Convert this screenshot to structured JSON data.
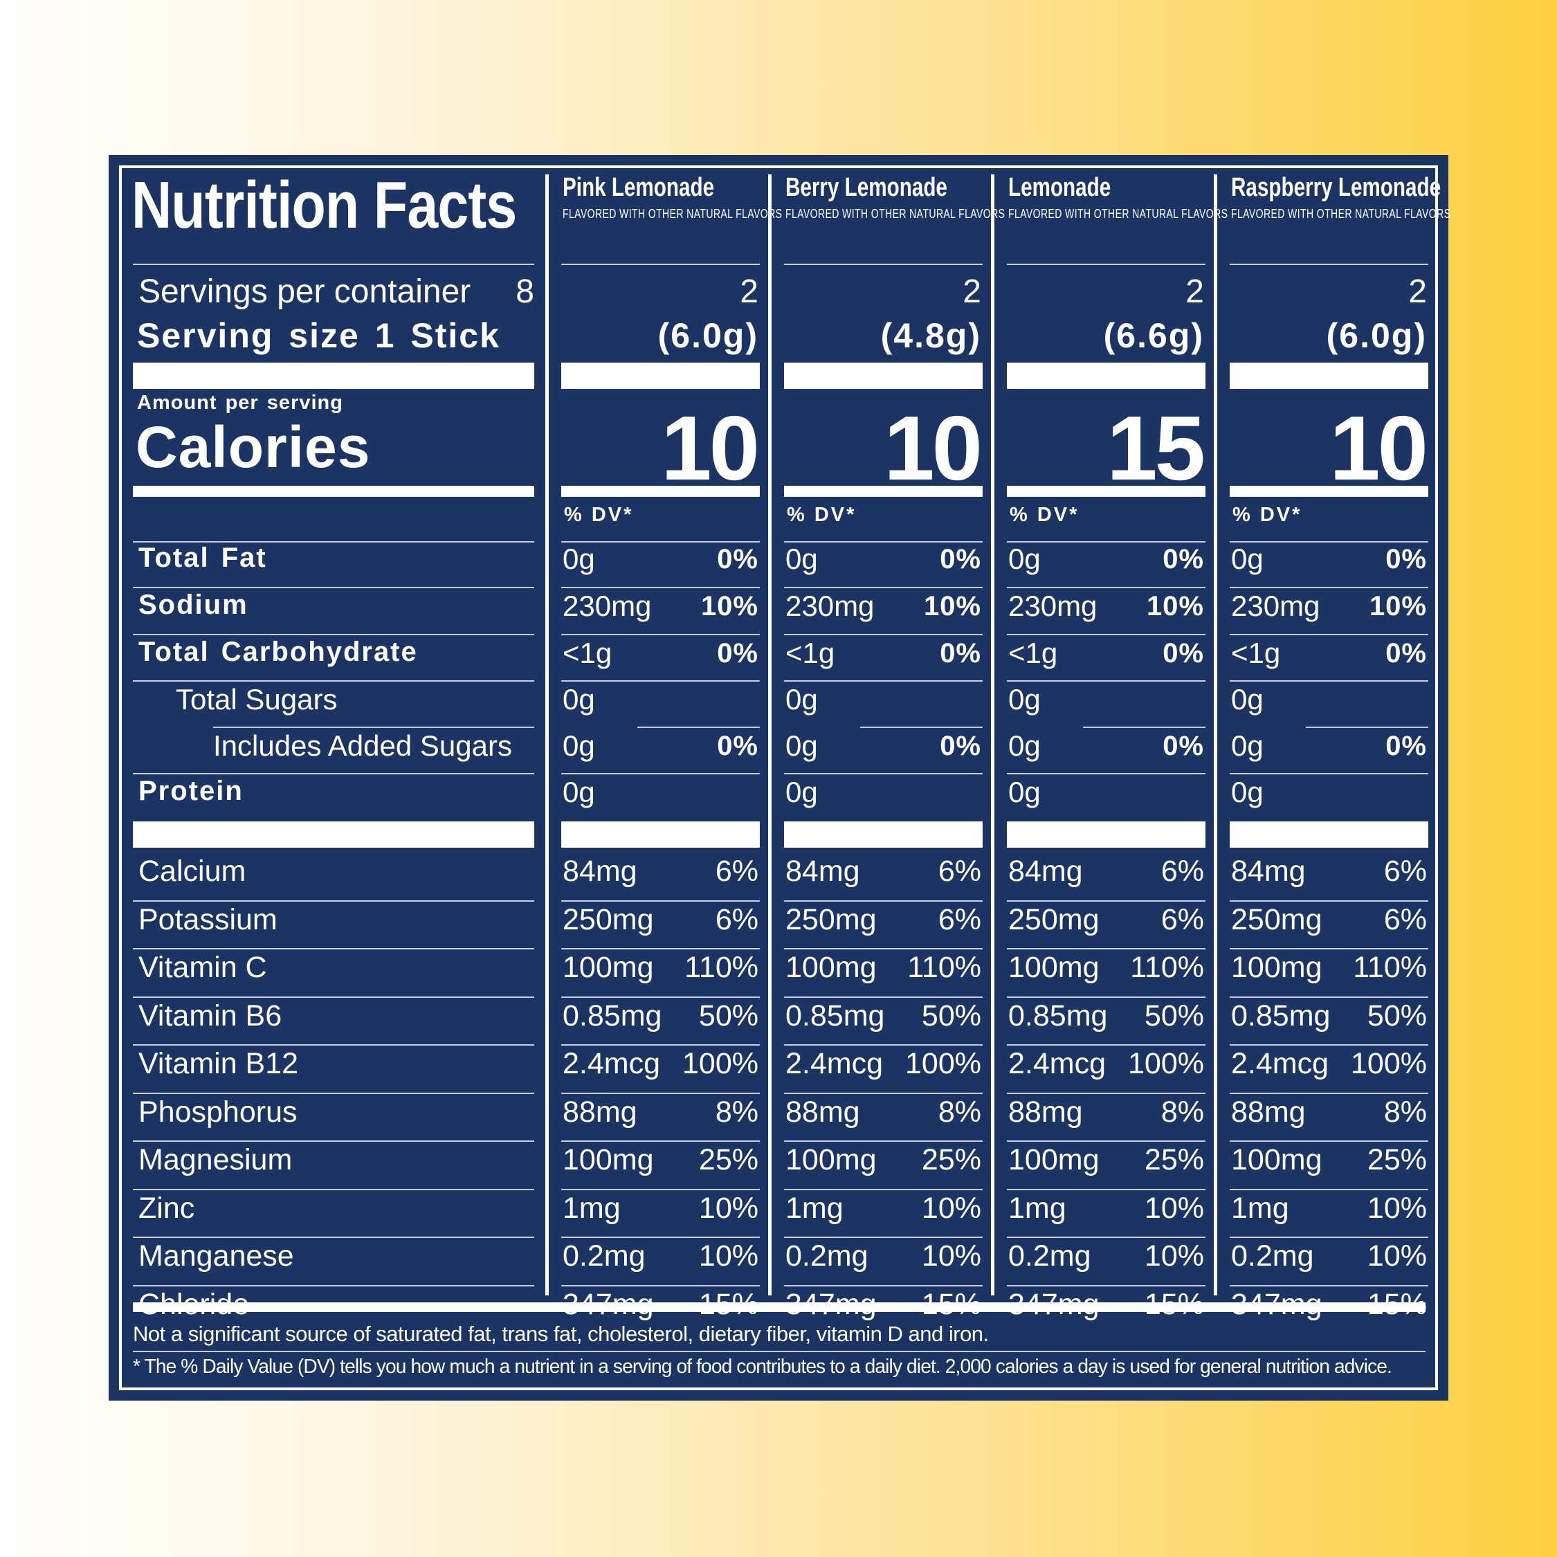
{
  "title": "Nutrition Facts",
  "servings_per_container_label": "Servings per container",
  "servings_per_container_value": "8",
  "serving_size_label": "Serving size  1 Stick",
  "amount_per_serving": "Amount per serving",
  "calories_label": "Calories",
  "dv_header": "% DV*",
  "nutrients": [
    {
      "label": "Total Fat"
    },
    {
      "label": "Sodium"
    },
    {
      "label": "Total Carbohydrate"
    },
    {
      "label": "Total Sugars"
    },
    {
      "label": "Includes Added Sugars"
    },
    {
      "label": "Protein"
    }
  ],
  "vitamins": [
    {
      "label": "Calcium"
    },
    {
      "label": "Potassium"
    },
    {
      "label": "Vitamin C"
    },
    {
      "label": "Vitamin B6"
    },
    {
      "label": "Vitamin B12"
    },
    {
      "label": "Phosphorus"
    },
    {
      "label": "Magnesium"
    },
    {
      "label": "Zinc"
    },
    {
      "label": "Manganese"
    },
    {
      "label": "Chloride"
    }
  ],
  "flavors": [
    {
      "name": "Pink Lemonade",
      "sub": "FLAVORED WITH OTHER NATURAL FLAVORS",
      "servings": "2",
      "size": "(6.0g)",
      "calories": "10",
      "nutrients": [
        {
          "amount": "0g",
          "dv": "0%"
        },
        {
          "amount": "230mg",
          "dv": "10%"
        },
        {
          "amount": "<1g",
          "dv": "0%"
        },
        {
          "amount": "0g",
          "dv": ""
        },
        {
          "amount": "0g",
          "dv": "0%"
        },
        {
          "amount": "0g",
          "dv": ""
        }
      ],
      "vitamins": [
        {
          "amount": "84mg",
          "dv": "6%"
        },
        {
          "amount": "250mg",
          "dv": "6%"
        },
        {
          "amount": "100mg",
          "dv": "110%"
        },
        {
          "amount": "0.85mg",
          "dv": "50%"
        },
        {
          "amount": "2.4mcg",
          "dv": "100%"
        },
        {
          "amount": "88mg",
          "dv": "8%"
        },
        {
          "amount": "100mg",
          "dv": "25%"
        },
        {
          "amount": "1mg",
          "dv": "10%"
        },
        {
          "amount": "0.2mg",
          "dv": "10%"
        },
        {
          "amount": "347mg",
          "dv": "15%"
        }
      ]
    },
    {
      "name": "Berry Lemonade",
      "sub": "FLAVORED WITH OTHER NATURAL FLAVORS",
      "servings": "2",
      "size": "(4.8g)",
      "calories": "10",
      "nutrients": [
        {
          "amount": "0g",
          "dv": "0%"
        },
        {
          "amount": "230mg",
          "dv": "10%"
        },
        {
          "amount": "<1g",
          "dv": "0%"
        },
        {
          "amount": "0g",
          "dv": ""
        },
        {
          "amount": "0g",
          "dv": "0%"
        },
        {
          "amount": "0g",
          "dv": ""
        }
      ],
      "vitamins": [
        {
          "amount": "84mg",
          "dv": "6%"
        },
        {
          "amount": "250mg",
          "dv": "6%"
        },
        {
          "amount": "100mg",
          "dv": "110%"
        },
        {
          "amount": "0.85mg",
          "dv": "50%"
        },
        {
          "amount": "2.4mcg",
          "dv": "100%"
        },
        {
          "amount": "88mg",
          "dv": "8%"
        },
        {
          "amount": "100mg",
          "dv": "25%"
        },
        {
          "amount": "1mg",
          "dv": "10%"
        },
        {
          "amount": "0.2mg",
          "dv": "10%"
        },
        {
          "amount": "347mg",
          "dv": "15%"
        }
      ]
    },
    {
      "name": "Lemonade",
      "sub": "FLAVORED WITH OTHER NATURAL FLAVORS",
      "servings": "2",
      "size": "(6.6g)",
      "calories": "15",
      "nutrients": [
        {
          "amount": "0g",
          "dv": "0%"
        },
        {
          "amount": "230mg",
          "dv": "10%"
        },
        {
          "amount": "<1g",
          "dv": "0%"
        },
        {
          "amount": "0g",
          "dv": ""
        },
        {
          "amount": "0g",
          "dv": "0%"
        },
        {
          "amount": "0g",
          "dv": ""
        }
      ],
      "vitamins": [
        {
          "amount": "84mg",
          "dv": "6%"
        },
        {
          "amount": "250mg",
          "dv": "6%"
        },
        {
          "amount": "100mg",
          "dv": "110%"
        },
        {
          "amount": "0.85mg",
          "dv": "50%"
        },
        {
          "amount": "2.4mcg",
          "dv": "100%"
        },
        {
          "amount": "88mg",
          "dv": "8%"
        },
        {
          "amount": "100mg",
          "dv": "25%"
        },
        {
          "amount": "1mg",
          "dv": "10%"
        },
        {
          "amount": "0.2mg",
          "dv": "10%"
        },
        {
          "amount": "347mg",
          "dv": "15%"
        }
      ]
    },
    {
      "name": "Raspberry Lemonade",
      "sub": "FLAVORED WITH OTHER NATURAL FLAVORS",
      "servings": "2",
      "size": "(6.0g)",
      "calories": "10",
      "nutrients": [
        {
          "amount": "0g",
          "dv": "0%"
        },
        {
          "amount": "230mg",
          "dv": "10%"
        },
        {
          "amount": "<1g",
          "dv": "0%"
        },
        {
          "amount": "0g",
          "dv": ""
        },
        {
          "amount": "0g",
          "dv": "0%"
        },
        {
          "amount": "0g",
          "dv": ""
        }
      ],
      "vitamins": [
        {
          "amount": "84mg",
          "dv": "6%"
        },
        {
          "amount": "250mg",
          "dv": "6%"
        },
        {
          "amount": "100mg",
          "dv": "110%"
        },
        {
          "amount": "0.85mg",
          "dv": "50%"
        },
        {
          "amount": "2.4mcg",
          "dv": "100%"
        },
        {
          "amount": "88mg",
          "dv": "8%"
        },
        {
          "amount": "100mg",
          "dv": "25%"
        },
        {
          "amount": "1mg",
          "dv": "10%"
        },
        {
          "amount": "0.2mg",
          "dv": "10%"
        },
        {
          "amount": "347mg",
          "dv": "15%"
        }
      ]
    }
  ],
  "footer": {
    "note1": "Not a significant source of saturated fat, trans fat, cholesterol, dietary fiber, vitamin D and iron.",
    "note2": "* The % Daily Value (DV) tells you how much a nutrient in a serving of food contributes to a daily diet. 2,000 calories a day is used for general nutrition advice."
  },
  "colors": {
    "panel": "#1c3464",
    "text": "#ffffff",
    "bg_left": "#ffffff",
    "bg_right": "#fcd040"
  }
}
